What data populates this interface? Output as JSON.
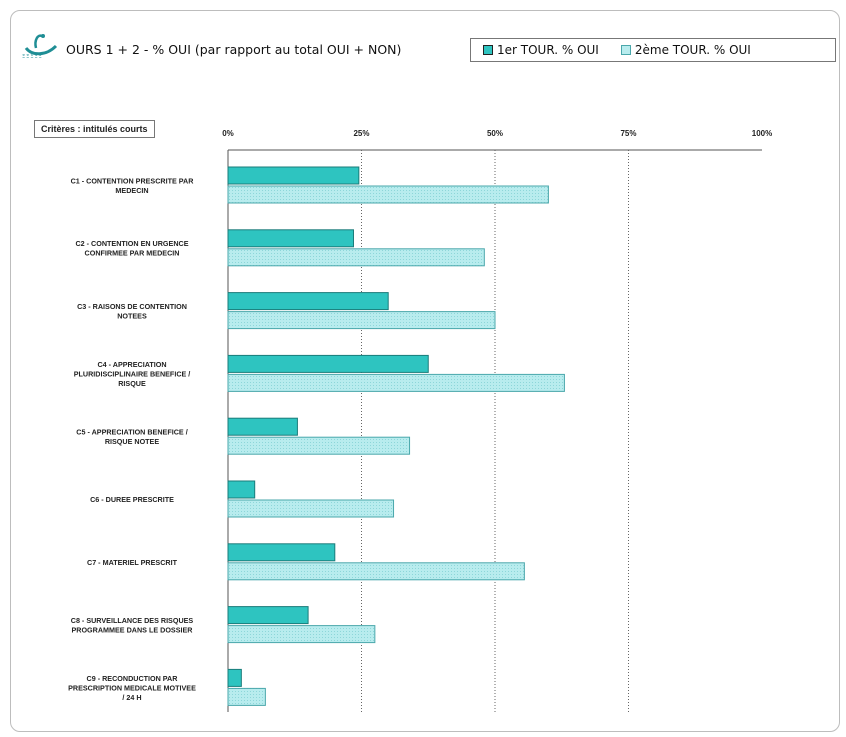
{
  "title": "OURS 1 + 2  - % OUI  (par rapport au total OUI + NON)",
  "logo": {
    "icon": "swan-logo-icon",
    "text": "ΞΞΞΞΞ"
  },
  "criteria_label": "Critères : intitulés courts",
  "colors": {
    "tour1": "#2ec4c0",
    "tour2": "#b8ecee",
    "tour2_stroke": "#4aa7ab",
    "tour1_stroke": "#1a7c7a"
  },
  "chart_data": {
    "type": "bar",
    "orientation": "horizontal",
    "categories": [
      [
        "C1 - CONTENTION PRESCRITE PAR",
        "MEDECIN"
      ],
      [
        "C2 - CONTENTION EN URGENCE",
        "CONFIRMEE PAR MEDECIN"
      ],
      [
        "C3 - RAISONS DE CONTENTION",
        "NOTEES"
      ],
      [
        "C4 - APPRECIATION",
        "PLURIDISCIPLINAIRE BENEFICE /",
        "RISQUE"
      ],
      [
        "C5 - APPRECIATION BENEFICE /",
        "RISQUE NOTEE"
      ],
      [
        "C6 - DUREE PRESCRITE"
      ],
      [
        "C7 - MATERIEL PRESCRIT"
      ],
      [
        "C8 - SURVEILLANCE DES RISQUES",
        "PROGRAMMEE DANS LE DOSSIER"
      ],
      [
        "C9 - RECONDUCTION PAR",
        "PRESCRIPTION MEDICALE MOTIVEE",
        "/ 24 H"
      ]
    ],
    "series": [
      {
        "name": "1er TOUR. % OUI",
        "values": [
          24.5,
          23.5,
          30,
          37.5,
          13,
          5,
          20,
          15,
          2.5
        ]
      },
      {
        "name": "2ème TOUR. % OUI",
        "values": [
          60,
          48,
          50,
          63,
          34,
          31,
          55.5,
          27.5,
          7
        ]
      }
    ],
    "xticks": [
      "0%",
      "25%",
      "50%",
      "75%",
      "100%"
    ],
    "xlim": [
      0,
      100
    ],
    "grid": "vertical dotted",
    "legend_position": "top-right"
  }
}
